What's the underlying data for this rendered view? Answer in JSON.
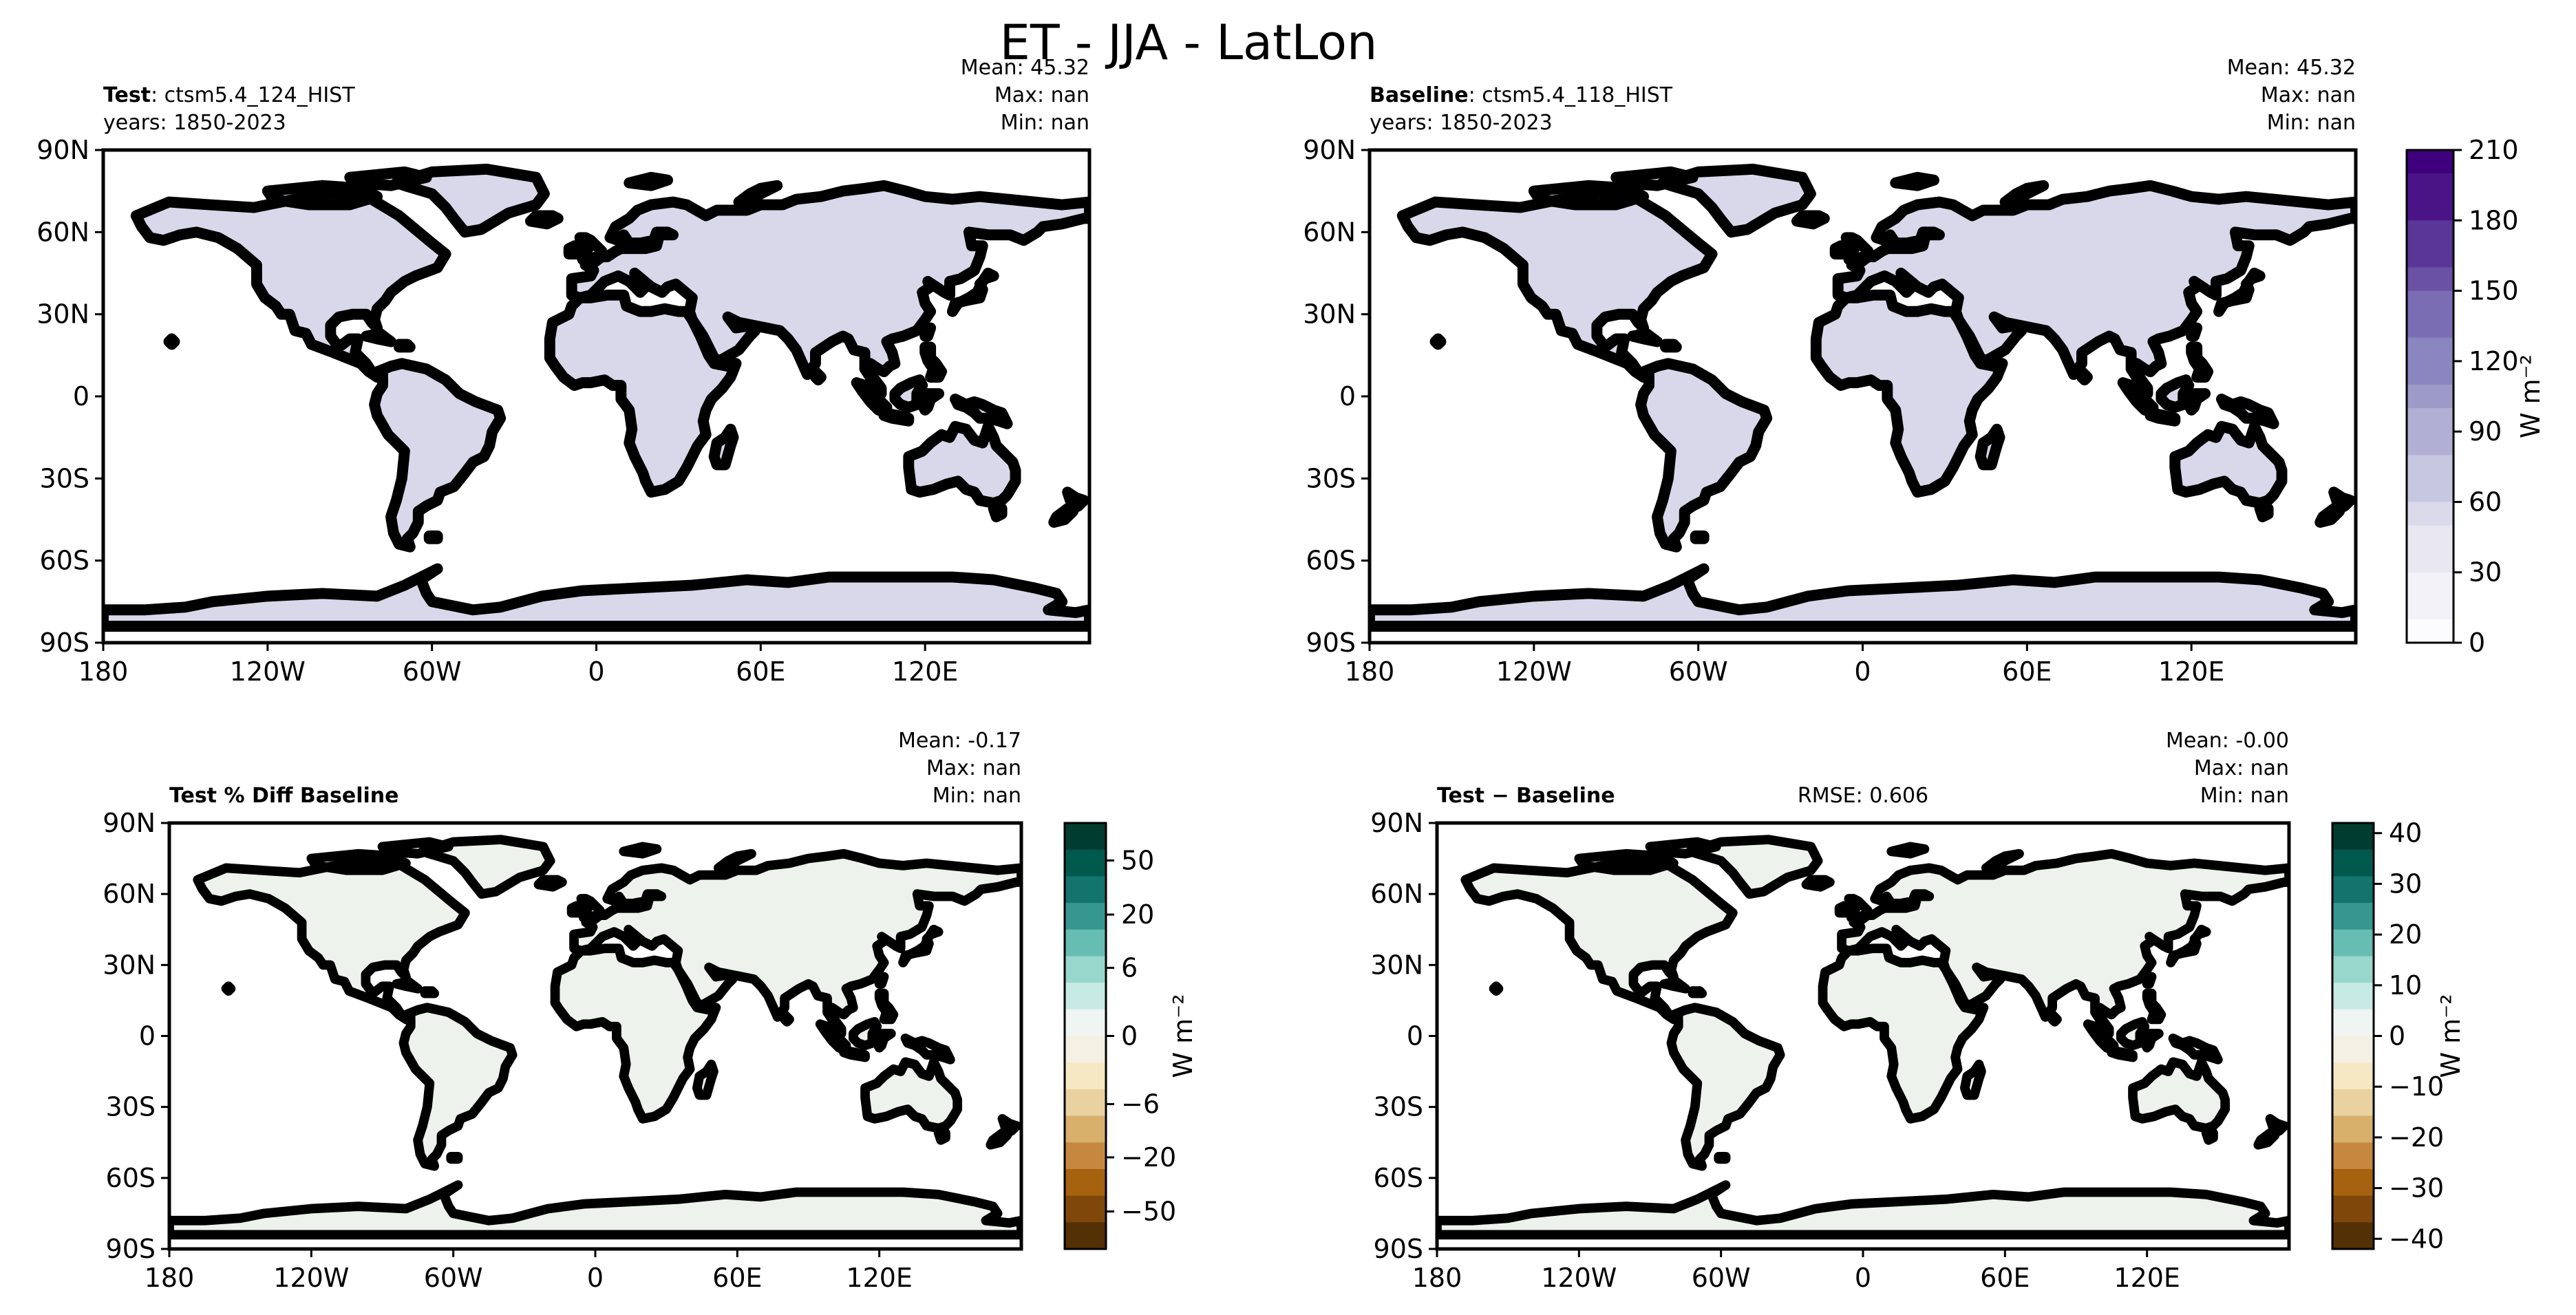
{
  "figure": {
    "title": "ET - JJA - LatLon"
  },
  "colors": {
    "purples": [
      "#fcfbfd",
      "#f3f2f8",
      "#e8e7f2",
      "#dadaeb",
      "#c6c7e1",
      "#b1b0d4",
      "#9e9ac8",
      "#8a86bf",
      "#7b6db4",
      "#6a51a3",
      "#5a3697",
      "#4a1486",
      "#3f007d"
    ],
    "brbg": [
      "#543005",
      "#7f470a",
      "#a6620e",
      "#c6883f",
      "#d8b06c",
      "#e9d2a0",
      "#f6e8c3",
      "#f5f0e4",
      "#eef5f3",
      "#c7eae5",
      "#98d7cc",
      "#66bdb1",
      "#35978f",
      "#12746c",
      "#01594d",
      "#003c30"
    ],
    "land_test": "#d8d8ea",
    "land_diff": "#eef2ec",
    "antarctica_diff": "#f5f0e4"
  },
  "chart_data": [
    {
      "id": "test",
      "type": "heatmap",
      "label_bold": "Test",
      "label_rest": ": ctsm5.4_124_HIST",
      "years": "years: 1850-2023",
      "stats": {
        "mean": "Mean: 45.32",
        "max": "Max:   nan",
        "min": "Min:   nan"
      },
      "rmse": "",
      "x_ticks": [
        "180",
        "120W",
        "60W",
        "0",
        "60E",
        "120E"
      ],
      "x_tick_values": [
        -180,
        -120,
        -60,
        0,
        60,
        120
      ],
      "y_ticks": [
        "90N",
        "60N",
        "30N",
        "0",
        "30S",
        "60S",
        "90S"
      ],
      "y_tick_values": [
        90,
        60,
        30,
        0,
        -30,
        -60,
        -90
      ],
      "xlim": [
        -180,
        180
      ],
      "ylim": [
        -90,
        90
      ]
    },
    {
      "id": "baseline",
      "type": "heatmap",
      "label_bold": "Baseline",
      "label_rest": ": ctsm5.4_118_HIST",
      "years": "years: 1850-2023",
      "stats": {
        "mean": "Mean: 45.32",
        "max": "Max:   nan",
        "min": "Min:   nan"
      },
      "rmse": "",
      "x_ticks": [
        "180",
        "120W",
        "60W",
        "0",
        "60E",
        "120E"
      ],
      "x_tick_values": [
        -180,
        -120,
        -60,
        0,
        60,
        120
      ],
      "y_ticks": [
        "90N",
        "60N",
        "30N",
        "0",
        "30S",
        "60S",
        "90S"
      ],
      "y_tick_values": [
        90,
        60,
        30,
        0,
        -30,
        -60,
        -90
      ],
      "xlim": [
        -180,
        180
      ],
      "ylim": [
        -90,
        90
      ]
    },
    {
      "id": "pctdiff",
      "type": "heatmap",
      "label_bold": "Test % Diff Baseline",
      "label_rest": "",
      "years": "",
      "stats": {
        "mean": "Mean: -0.17",
        "max": "Max:   nan",
        "min": "Min:   nan"
      },
      "rmse": "",
      "x_ticks": [
        "180",
        "120W",
        "60W",
        "0",
        "60E",
        "120E"
      ],
      "x_tick_values": [
        -180,
        -120,
        -60,
        0,
        60,
        120
      ],
      "y_ticks": [
        "90N",
        "60N",
        "30N",
        "0",
        "30S",
        "60S",
        "90S"
      ],
      "y_tick_values": [
        90,
        60,
        30,
        0,
        -30,
        -60,
        -90
      ],
      "xlim": [
        -180,
        180
      ],
      "ylim": [
        -90,
        90
      ]
    },
    {
      "id": "diff",
      "type": "heatmap",
      "label_bold": "Test − Baseline",
      "label_rest": "",
      "years": "",
      "stats": {
        "mean": "Mean: -0.00",
        "max": "Max:   nan",
        "min": "Min:   nan"
      },
      "rmse": "RMSE: 0.606",
      "x_ticks": [
        "180",
        "120W",
        "60W",
        "0",
        "60E",
        "120E"
      ],
      "x_tick_values": [
        -180,
        -120,
        -60,
        0,
        60,
        120
      ],
      "y_ticks": [
        "90N",
        "60N",
        "30N",
        "0",
        "30S",
        "60S",
        "90S"
      ],
      "y_tick_values": [
        90,
        60,
        30,
        0,
        -30,
        -60,
        -90
      ],
      "xlim": [
        -180,
        180
      ],
      "ylim": [
        -90,
        90
      ]
    }
  ],
  "colorbars": [
    {
      "id": "cb-abs",
      "label": "W m⁻²",
      "ticks": [
        "0",
        "30",
        "60",
        "90",
        "120",
        "150",
        "180",
        "210"
      ],
      "tick_values": [
        0,
        30,
        60,
        90,
        120,
        150,
        180,
        210
      ],
      "range": [
        0,
        210
      ],
      "n_bins": 21
    },
    {
      "id": "cb-pct",
      "label": "W m⁻²",
      "ticks": [
        "50",
        "20",
        "6",
        "0",
        "−6",
        "−20",
        "−50"
      ],
      "tick_fraction": [
        0.088,
        0.215,
        0.34,
        0.5,
        0.66,
        0.785,
        0.912
      ],
      "n_bins": 16
    },
    {
      "id": "cb-diff",
      "label": "W m⁻²",
      "ticks": [
        "40",
        "30",
        "20",
        "10",
        "0",
        "−10",
        "−20",
        "−30",
        "−40"
      ],
      "tick_values": [
        40,
        30,
        20,
        10,
        0,
        -10,
        -20,
        -30,
        -40
      ],
      "range": [
        -42,
        42
      ],
      "n_bins": 16
    }
  ]
}
